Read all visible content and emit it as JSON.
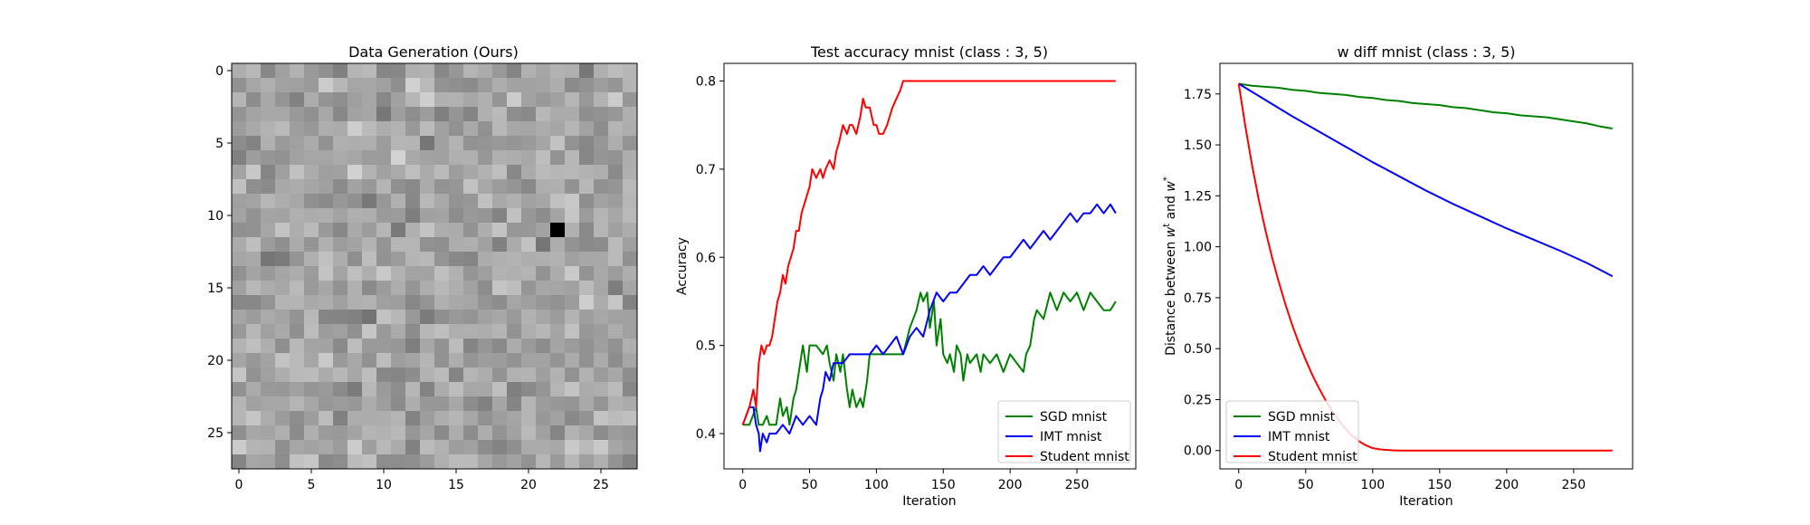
{
  "chart_data": [
    {
      "type": "heatmap",
      "title": "Data Generation (Ours)",
      "xlabel": "",
      "ylabel": "",
      "grid_size": 28,
      "colormap": "gray",
      "xticks": [
        0,
        5,
        10,
        15,
        20,
        25
      ],
      "yticks": [
        0,
        5,
        10,
        15,
        20,
        25
      ],
      "xlim": [
        -0.5,
        27.5
      ],
      "ylim": [
        27.5,
        -0.5
      ],
      "darkest_cell": {
        "row": 11,
        "col": 22
      }
    },
    {
      "type": "line",
      "title": "Test accuracy mnist (class : 3, 5)",
      "xlabel": "Iteration",
      "ylabel": "Accuracy",
      "xlim": [
        -14,
        294
      ],
      "ylim": [
        0.36,
        0.82
      ],
      "xticks": [
        0,
        50,
        100,
        150,
        200,
        250
      ],
      "yticks": [
        0.4,
        0.5,
        0.6,
        0.7,
        0.8
      ],
      "legend_position": "lower-right",
      "series": [
        {
          "name": "SGD mnist",
          "color": "#008000",
          "x": [
            0,
            5,
            10,
            12,
            15,
            18,
            20,
            25,
            28,
            30,
            33,
            35,
            38,
            40,
            43,
            45,
            48,
            50,
            55,
            60,
            63,
            65,
            68,
            70,
            73,
            75,
            78,
            80,
            82,
            85,
            88,
            90,
            93,
            95,
            100,
            105,
            110,
            115,
            120,
            125,
            130,
            133,
            135,
            138,
            140,
            143,
            145,
            148,
            150,
            153,
            155,
            158,
            160,
            163,
            165,
            168,
            170,
            175,
            178,
            180,
            185,
            190,
            195,
            200,
            205,
            210,
            212,
            215,
            218,
            220,
            225,
            230,
            235,
            240,
            245,
            250,
            255,
            260,
            265,
            270,
            275,
            279
          ],
          "y": [
            0.41,
            0.41,
            0.43,
            0.41,
            0.41,
            0.42,
            0.41,
            0.41,
            0.44,
            0.42,
            0.43,
            0.41,
            0.44,
            0.45,
            0.48,
            0.5,
            0.47,
            0.5,
            0.5,
            0.49,
            0.5,
            0.48,
            0.46,
            0.49,
            0.47,
            0.49,
            0.45,
            0.43,
            0.45,
            0.43,
            0.44,
            0.43,
            0.46,
            0.49,
            0.49,
            0.49,
            0.49,
            0.49,
            0.49,
            0.52,
            0.54,
            0.56,
            0.55,
            0.56,
            0.52,
            0.55,
            0.5,
            0.53,
            0.49,
            0.48,
            0.49,
            0.47,
            0.5,
            0.49,
            0.46,
            0.49,
            0.48,
            0.49,
            0.47,
            0.49,
            0.48,
            0.49,
            0.47,
            0.49,
            0.48,
            0.47,
            0.49,
            0.5,
            0.53,
            0.54,
            0.53,
            0.56,
            0.54,
            0.56,
            0.55,
            0.56,
            0.54,
            0.56,
            0.55,
            0.54,
            0.54,
            0.55
          ]
        },
        {
          "name": "IMT mnist",
          "color": "#0000ff",
          "x": [
            0,
            5,
            8,
            10,
            12,
            13,
            15,
            18,
            20,
            25,
            30,
            35,
            40,
            45,
            50,
            55,
            58,
            60,
            62,
            65,
            68,
            70,
            75,
            80,
            85,
            90,
            95,
            100,
            105,
            110,
            115,
            120,
            125,
            130,
            135,
            140,
            145,
            150,
            155,
            160,
            165,
            170,
            175,
            180,
            185,
            190,
            195,
            200,
            205,
            210,
            215,
            220,
            225,
            230,
            235,
            240,
            245,
            250,
            255,
            260,
            265,
            270,
            275,
            279
          ],
          "y": [
            0.41,
            0.43,
            0.43,
            0.41,
            0.4,
            0.38,
            0.4,
            0.39,
            0.4,
            0.4,
            0.41,
            0.4,
            0.42,
            0.41,
            0.42,
            0.41,
            0.44,
            0.45,
            0.47,
            0.46,
            0.48,
            0.48,
            0.48,
            0.49,
            0.49,
            0.49,
            0.49,
            0.5,
            0.49,
            0.5,
            0.51,
            0.49,
            0.51,
            0.52,
            0.51,
            0.54,
            0.56,
            0.55,
            0.56,
            0.56,
            0.57,
            0.58,
            0.58,
            0.59,
            0.58,
            0.59,
            0.6,
            0.6,
            0.61,
            0.62,
            0.61,
            0.62,
            0.63,
            0.62,
            0.63,
            0.64,
            0.65,
            0.64,
            0.65,
            0.65,
            0.66,
            0.65,
            0.66,
            0.65
          ]
        },
        {
          "name": "Student mnist",
          "color": "#ff0000",
          "x": [
            0,
            5,
            8,
            10,
            12,
            14,
            16,
            18,
            20,
            22,
            24,
            26,
            28,
            30,
            32,
            34,
            36,
            38,
            40,
            42,
            44,
            46,
            48,
            50,
            52,
            55,
            58,
            60,
            62,
            65,
            68,
            70,
            72,
            75,
            78,
            80,
            82,
            85,
            88,
            90,
            92,
            95,
            98,
            100,
            102,
            105,
            108,
            110,
            112,
            115,
            118,
            120,
            125,
            130,
            150,
            200,
            250,
            279
          ],
          "y": [
            0.41,
            0.43,
            0.45,
            0.43,
            0.48,
            0.5,
            0.49,
            0.5,
            0.5,
            0.51,
            0.53,
            0.55,
            0.56,
            0.58,
            0.57,
            0.59,
            0.6,
            0.61,
            0.63,
            0.63,
            0.65,
            0.66,
            0.67,
            0.68,
            0.7,
            0.69,
            0.7,
            0.69,
            0.7,
            0.71,
            0.7,
            0.72,
            0.73,
            0.75,
            0.74,
            0.75,
            0.75,
            0.74,
            0.76,
            0.78,
            0.77,
            0.77,
            0.75,
            0.75,
            0.74,
            0.74,
            0.75,
            0.76,
            0.77,
            0.78,
            0.79,
            0.8,
            0.8,
            0.8,
            0.8,
            0.8,
            0.8,
            0.8
          ]
        }
      ]
    },
    {
      "type": "line",
      "title": "w diff mnist (class : 3, 5)",
      "xlabel": "Iteration",
      "ylabel": "Distance between w^t and w^*",
      "ylabel_parts": {
        "prefix": "Distance between ",
        "w1": "w",
        "sup1": "t",
        "mid": " and ",
        "w2": "w",
        "sup2": "*"
      },
      "xlim": [
        -14,
        294
      ],
      "ylim": [
        -0.09,
        1.9
      ],
      "xticks": [
        0,
        50,
        100,
        150,
        200,
        250
      ],
      "yticks": [
        0.0,
        0.25,
        0.5,
        0.75,
        1.0,
        1.25,
        1.5,
        1.75
      ],
      "ytick_labels": [
        "0.00",
        "0.25",
        "0.50",
        "0.75",
        "1.00",
        "1.25",
        "1.50",
        "1.75"
      ],
      "legend_position": "lower-left",
      "series": [
        {
          "name": "SGD mnist",
          "color": "#008000",
          "x": [
            0,
            10,
            20,
            30,
            40,
            50,
            60,
            70,
            80,
            90,
            100,
            110,
            120,
            130,
            140,
            150,
            160,
            170,
            180,
            190,
            200,
            210,
            220,
            230,
            240,
            250,
            260,
            270,
            279
          ],
          "y": [
            1.8,
            1.79,
            1.785,
            1.78,
            1.77,
            1.765,
            1.755,
            1.75,
            1.745,
            1.735,
            1.73,
            1.72,
            1.715,
            1.705,
            1.7,
            1.695,
            1.685,
            1.68,
            1.67,
            1.66,
            1.655,
            1.645,
            1.64,
            1.635,
            1.625,
            1.615,
            1.605,
            1.59,
            1.58
          ]
        },
        {
          "name": "IMT mnist",
          "color": "#0000ff",
          "x": [
            0,
            20,
            40,
            60,
            80,
            100,
            120,
            140,
            160,
            180,
            200,
            220,
            240,
            260,
            279
          ],
          "y": [
            1.8,
            1.72,
            1.64,
            1.565,
            1.49,
            1.415,
            1.345,
            1.275,
            1.21,
            1.15,
            1.09,
            1.035,
            0.98,
            0.92,
            0.855
          ]
        },
        {
          "name": "Student mnist",
          "color": "#ff0000",
          "x": [
            0,
            5,
            10,
            15,
            20,
            25,
            30,
            35,
            40,
            45,
            50,
            55,
            60,
            65,
            70,
            75,
            80,
            85,
            90,
            95,
            100,
            105,
            110,
            115,
            120,
            130,
            150,
            200,
            250,
            279
          ],
          "y": [
            1.8,
            1.59,
            1.4,
            1.23,
            1.08,
            0.945,
            0.825,
            0.715,
            0.615,
            0.525,
            0.445,
            0.37,
            0.305,
            0.245,
            0.19,
            0.145,
            0.105,
            0.07,
            0.045,
            0.025,
            0.012,
            0.006,
            0.003,
            0.001,
            0.0,
            0.0,
            0.0,
            0.0,
            0.0,
            0.0
          ]
        }
      ]
    }
  ]
}
